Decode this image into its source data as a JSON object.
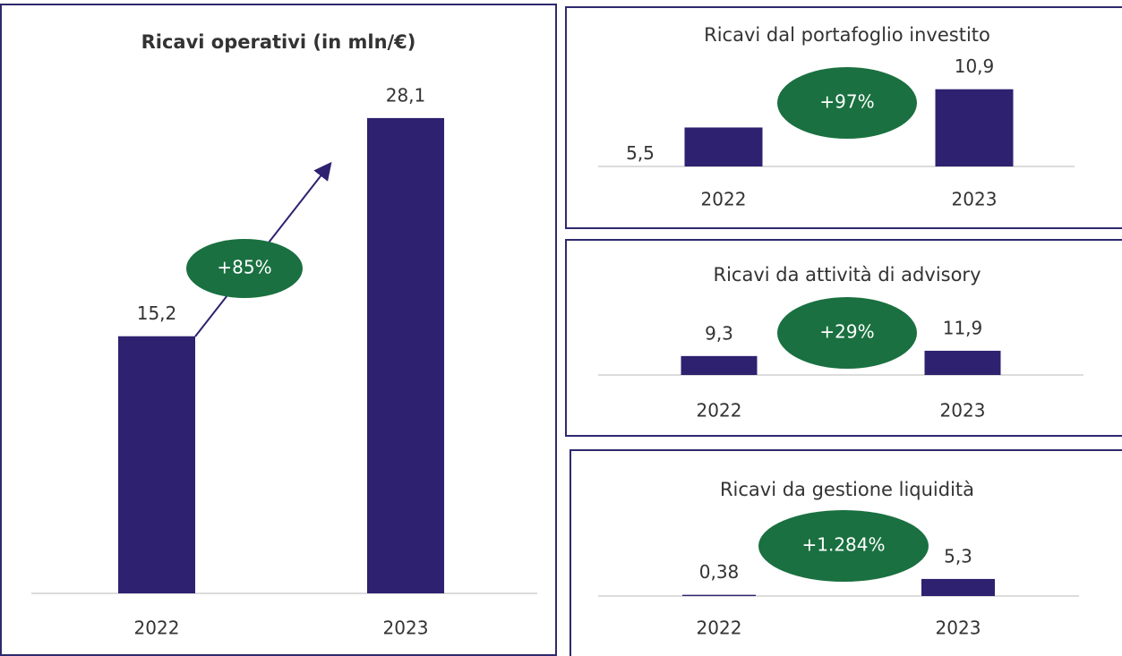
{
  "chart_data": [
    {
      "type": "bar",
      "title": "Ricavi operativi (in mln/€)",
      "categories": [
        "2022",
        "2023"
      ],
      "values": [
        15.2,
        28.1
      ],
      "value_labels": [
        "15,2",
        "28,1"
      ],
      "color": "#2e2170",
      "ylim": [
        0,
        30
      ],
      "annotation": "+85%"
    },
    {
      "type": "bar",
      "title": "Ricavi dal portafoglio investito",
      "categories": [
        "2022",
        "2023"
      ],
      "values": [
        5.5,
        10.9
      ],
      "value_labels": [
        "5,5",
        "10,9"
      ],
      "color": "#2e2170",
      "ylim": [
        0,
        12
      ],
      "annotation": "+97%"
    },
    {
      "type": "bar",
      "title": "Ricavi da attività di advisory",
      "categories": [
        "2022",
        "2023"
      ],
      "values": [
        9.3,
        11.9
      ],
      "value_labels": [
        "9,3",
        "11,9"
      ],
      "color": "#2e2170",
      "ylim": [
        0,
        40
      ],
      "annotation": "+29%"
    },
    {
      "type": "bar",
      "title": "Ricavi da gestione liquidità",
      "categories": [
        "2022",
        "2023"
      ],
      "values": [
        0.38,
        5.3
      ],
      "value_labels": [
        "0,38",
        "5,3"
      ],
      "color": "#2e2170",
      "ylim": [
        0,
        30
      ],
      "annotation": "+1.284%"
    }
  ]
}
